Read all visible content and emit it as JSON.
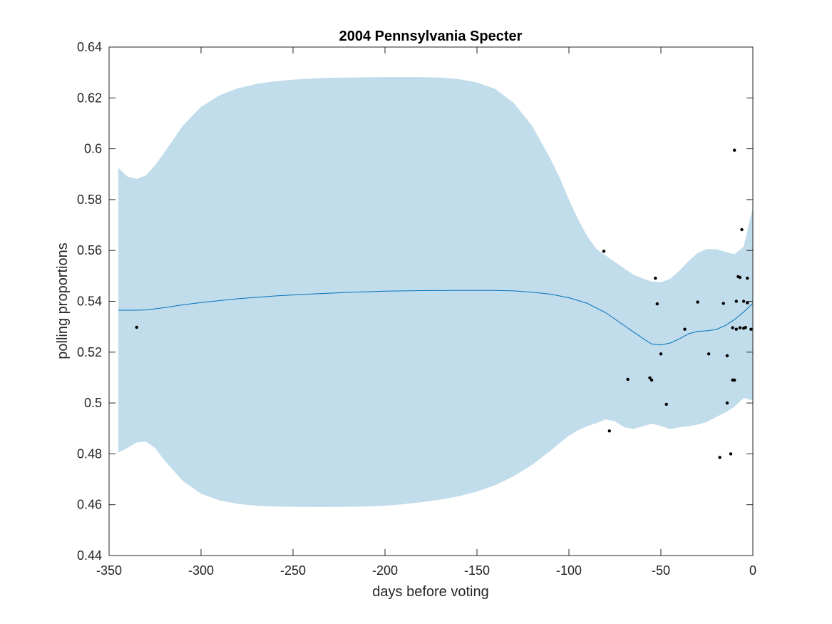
{
  "chart_data": {
    "type": "line",
    "title": "2004 Pennsylvania Specter",
    "xlabel": "days before voting",
    "ylabel": "polling proportions",
    "xlim": [
      -350,
      0
    ],
    "ylim": [
      0.44,
      0.64
    ],
    "xticks": [
      -350,
      -300,
      -250,
      -200,
      -150,
      -100,
      -50,
      0
    ],
    "xtick_labels": [
      "-350",
      "-300",
      "-250",
      "-200",
      "-150",
      "-100",
      "-50",
      "0"
    ],
    "yticks": [
      0.44,
      0.46,
      0.48,
      0.5,
      0.52,
      0.54,
      0.56,
      0.58,
      0.6,
      0.62,
      0.64
    ],
    "ytick_labels": [
      "0.44",
      "0.46",
      "0.48",
      "0.5",
      "0.52",
      "0.54",
      "0.56",
      "0.58",
      "0.6",
      "0.62",
      "0.64"
    ],
    "grid": false,
    "colors": {
      "band": "#c1dcea",
      "mean": "#0072bd",
      "points": "#000000",
      "axes": "#262626"
    },
    "band": {
      "x": [
        -345,
        -340,
        -335,
        -330,
        -325,
        -320,
        -310,
        -300,
        -290,
        -280,
        -270,
        -260,
        -250,
        -240,
        -230,
        -220,
        -210,
        -200,
        -190,
        -180,
        -170,
        -160,
        -150,
        -140,
        -130,
        -120,
        -110,
        -105,
        -100,
        -95,
        -90,
        -85,
        -80,
        -75,
        -70,
        -65,
        -60,
        -55,
        -50,
        -45,
        -40,
        -35,
        -30,
        -25,
        -20,
        -15,
        -10,
        -5,
        0
      ],
      "upper": [
        0.5925,
        0.589,
        0.5882,
        0.5895,
        0.5935,
        0.5985,
        0.609,
        0.6165,
        0.621,
        0.6238,
        0.6255,
        0.6265,
        0.6272,
        0.6276,
        0.6279,
        0.628,
        0.6281,
        0.6282,
        0.6282,
        0.6282,
        0.628,
        0.6274,
        0.6261,
        0.6235,
        0.618,
        0.609,
        0.596,
        0.5885,
        0.58,
        0.5722,
        0.5655,
        0.5606,
        0.558,
        0.5555,
        0.553,
        0.5505,
        0.549,
        0.5478,
        0.5475,
        0.5488,
        0.552,
        0.5558,
        0.559,
        0.5605,
        0.5605,
        0.5595,
        0.5585,
        0.5615,
        0.577
      ],
      "lower": [
        0.4805,
        0.4823,
        0.4845,
        0.4848,
        0.4823,
        0.4775,
        0.4694,
        0.4643,
        0.4617,
        0.4603,
        0.4596,
        0.4593,
        0.4592,
        0.4591,
        0.4591,
        0.4592,
        0.4593,
        0.4596,
        0.4602,
        0.461,
        0.462,
        0.4633,
        0.4652,
        0.4677,
        0.4712,
        0.4757,
        0.4812,
        0.4843,
        0.4871,
        0.4893,
        0.4909,
        0.4921,
        0.4935,
        0.4928,
        0.4905,
        0.4898,
        0.4908,
        0.4918,
        0.491,
        0.4897,
        0.4905,
        0.4908,
        0.4915,
        0.4925,
        0.4945,
        0.4962,
        0.4985,
        0.502,
        0.501
      ]
    },
    "mean": {
      "x": [
        -345,
        -335,
        -330,
        -320,
        -310,
        -300,
        -280,
        -260,
        -240,
        -220,
        -200,
        -180,
        -160,
        -140,
        -130,
        -120,
        -110,
        -100,
        -90,
        -80,
        -70,
        -60,
        -55,
        -50,
        -45,
        -40,
        -35,
        -30,
        -25,
        -20,
        -15,
        -10,
        -5,
        0
      ],
      "y": [
        0.5365,
        0.5365,
        0.5366,
        0.5375,
        0.5386,
        0.5395,
        0.541,
        0.5421,
        0.5429,
        0.5435,
        0.544,
        0.5442,
        0.5443,
        0.5443,
        0.5441,
        0.5436,
        0.5428,
        0.5414,
        0.5392,
        0.5355,
        0.5305,
        0.5255,
        0.5232,
        0.5228,
        0.5236,
        0.5252,
        0.5272,
        0.5282,
        0.5284,
        0.5289,
        0.5305,
        0.5328,
        0.5358,
        0.5392
      ]
    },
    "points": [
      {
        "x": -335,
        "y": 0.5298
      },
      {
        "x": -81,
        "y": 0.5597
      },
      {
        "x": -78,
        "y": 0.489
      },
      {
        "x": -68,
        "y": 0.5093
      },
      {
        "x": -56,
        "y": 0.5099
      },
      {
        "x": -55,
        "y": 0.509
      },
      {
        "x": -53,
        "y": 0.5491
      },
      {
        "x": -52,
        "y": 0.539
      },
      {
        "x": -50,
        "y": 0.5193
      },
      {
        "x": -47,
        "y": 0.4995
      },
      {
        "x": -37,
        "y": 0.529
      },
      {
        "x": -30,
        "y": 0.5397
      },
      {
        "x": -24,
        "y": 0.5193
      },
      {
        "x": -18,
        "y": 0.4786
      },
      {
        "x": -16,
        "y": 0.5392
      },
      {
        "x": -14,
        "y": 0.5186
      },
      {
        "x": -14,
        "y": 0.5
      },
      {
        "x": -12,
        "y": 0.48
      },
      {
        "x": -11,
        "y": 0.509
      },
      {
        "x": -11,
        "y": 0.5296
      },
      {
        "x": -10,
        "y": 0.5994
      },
      {
        "x": -10,
        "y": 0.509
      },
      {
        "x": -9,
        "y": 0.54
      },
      {
        "x": -9,
        "y": 0.529
      },
      {
        "x": -8,
        "y": 0.5497
      },
      {
        "x": -7,
        "y": 0.5494
      },
      {
        "x": -7,
        "y": 0.5296
      },
      {
        "x": -6,
        "y": 0.5682
      },
      {
        "x": -5,
        "y": 0.54
      },
      {
        "x": -5,
        "y": 0.5294
      },
      {
        "x": -4,
        "y": 0.5297
      },
      {
        "x": -3,
        "y": 0.5491
      },
      {
        "x": -3,
        "y": 0.5394
      },
      {
        "x": -1,
        "y": 0.529
      }
    ]
  }
}
